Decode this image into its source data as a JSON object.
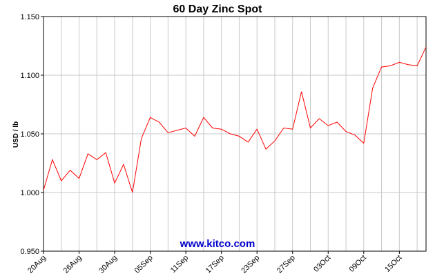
{
  "chart_data": {
    "type": "line",
    "title": "60 Day Zinc Spot",
    "ylabel": "USD / lb",
    "xlabel": "",
    "watermark": "www.kitco.com",
    "ylim": [
      0.95,
      1.15
    ],
    "y_ticks": [
      0.95,
      1.0,
      1.05,
      1.1,
      1.15
    ],
    "y_tick_labels": [
      "0.950",
      "1.000",
      "1.050",
      "1.100",
      "1.150"
    ],
    "x_tick_labels": [
      "20Aug",
      "26Aug",
      "30Aug",
      "05Sep",
      "11Sep",
      "17Sep",
      "23Sep",
      "27Sep",
      "03Oct",
      "09Oct",
      "15Oct"
    ],
    "x_tick_index": [
      0,
      4,
      8,
      12,
      16,
      20,
      24,
      28,
      32,
      36,
      40
    ],
    "grid": true,
    "colors": {
      "line": "#ff0000",
      "grid": "#c8c8c8",
      "watermark": "#0000cc",
      "axis": "#000000"
    },
    "series": [
      {
        "values": [
          1.002,
          1.028,
          1.01,
          1.019,
          1.012,
          1.033,
          1.028,
          1.034,
          1.008,
          1.024,
          1.0,
          1.046,
          1.064,
          1.06,
          1.051,
          1.053,
          1.055,
          1.048,
          1.064,
          1.055,
          1.054,
          1.05,
          1.048,
          1.043,
          1.054,
          1.037,
          1.044,
          1.055,
          1.054,
          1.086,
          1.055,
          1.063,
          1.057,
          1.06,
          1.052,
          1.049,
          1.042,
          1.089,
          1.107,
          1.108,
          1.111,
          1.109,
          1.108,
          1.124
        ]
      }
    ]
  }
}
